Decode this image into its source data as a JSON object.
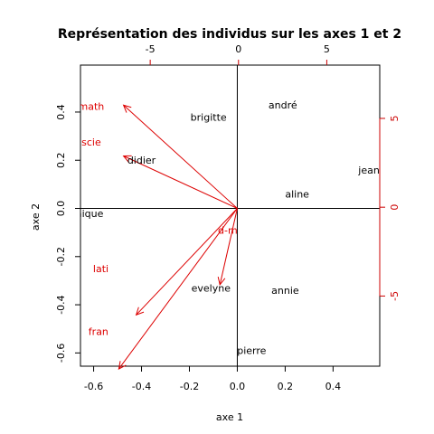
{
  "chart_data": {
    "type": "scatter",
    "title": "Représentation des individus sur les axes 1 et 2",
    "xlabel": "axe 1",
    "ylabel": "axe 2",
    "xlim": [
      -0.655,
      0.595
    ],
    "ylim": [
      -0.655,
      0.595
    ],
    "x_ticks": [
      "-0.6",
      "-0.4",
      "-0.2",
      "0.0",
      "0.2",
      "0.4"
    ],
    "y_ticks": [
      "-0.6",
      "-0.4",
      "-0.2",
      "0.0",
      "0.2",
      "0.4"
    ],
    "secondary_xlim": [
      -8.95,
      8.0
    ],
    "secondary_ylim": [
      -8.95,
      8.0
    ],
    "secondary_x_ticks": [
      "-5",
      "0",
      "5"
    ],
    "secondary_y_ticks": [
      "-5",
      "0",
      "5"
    ],
    "individuals": [
      {
        "label": "andré",
        "x": 0.19,
        "y": 0.43
      },
      {
        "label": "brigitte",
        "x": -0.12,
        "y": 0.38
      },
      {
        "label": "didier",
        "x": -0.4,
        "y": 0.2
      },
      {
        "label": "jean",
        "x": 0.55,
        "y": 0.16
      },
      {
        "label": "aline",
        "x": 0.25,
        "y": 0.06
      },
      {
        "label": "onique",
        "x": -0.63,
        "y": -0.02
      },
      {
        "label": "evelyne",
        "x": -0.11,
        "y": -0.33
      },
      {
        "label": "annie",
        "x": 0.2,
        "y": -0.34
      },
      {
        "label": "pierre",
        "x": 0.06,
        "y": -0.59
      }
    ],
    "variables": [
      {
        "label": "math",
        "x": -0.72,
        "y": 0.65,
        "label_x": -0.61,
        "label_y": 0.425
      },
      {
        "label": "scie",
        "x": -0.72,
        "y": 0.33,
        "label_x": -0.61,
        "label_y": 0.275
      },
      {
        "label": "lati",
        "x": -0.64,
        "y": -0.67,
        "label_x": -0.57,
        "label_y": -0.25
      },
      {
        "label": "fran",
        "x": -0.75,
        "y": -1.01,
        "label_x": -0.58,
        "label_y": -0.51
      },
      {
        "label": "d-m",
        "x": -0.11,
        "y": -0.48,
        "label_x": -0.04,
        "label_y": -0.09
      }
    ],
    "arrow_scale": 0.066,
    "colors": {
      "points": "#000000",
      "variables": "#dd0000",
      "secondary_axes": "#cc0000"
    },
    "grid": false
  }
}
